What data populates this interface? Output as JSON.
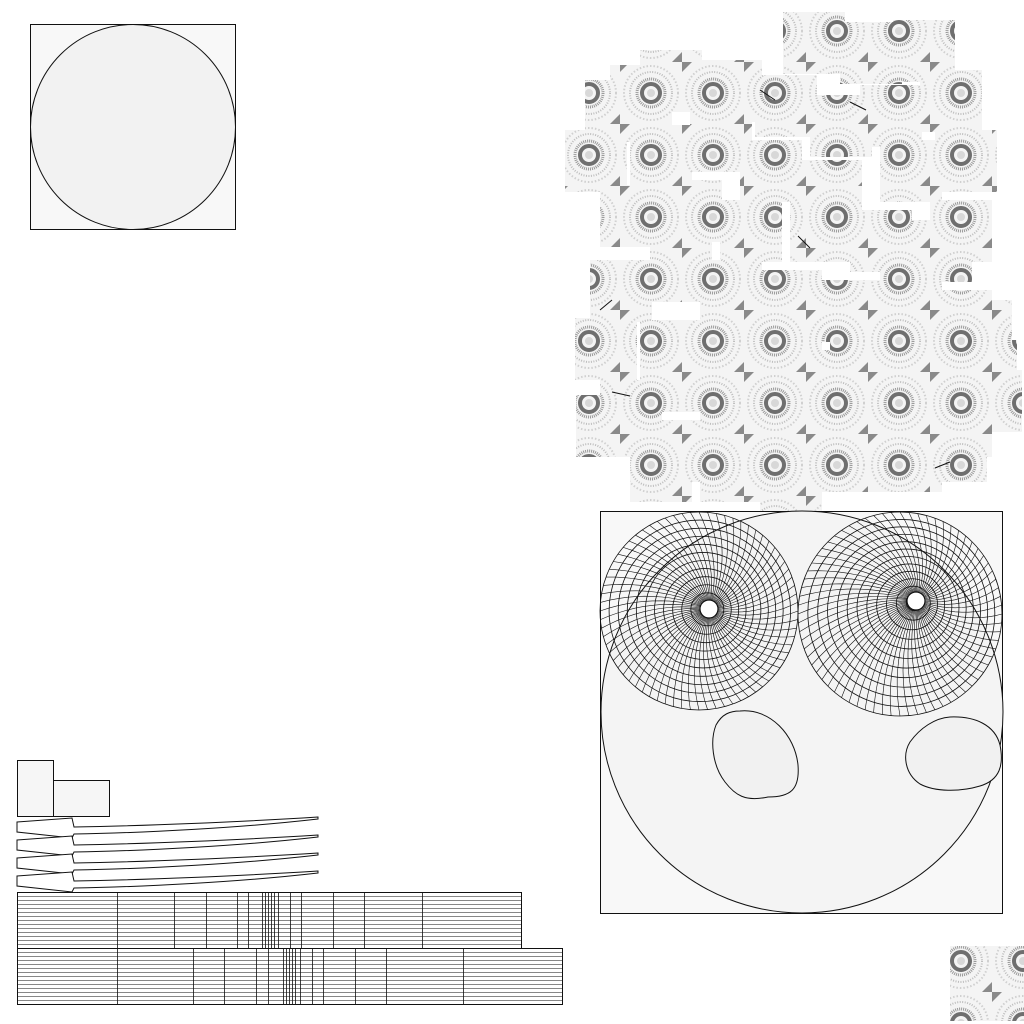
{
  "colors": {
    "background": "#ffffff",
    "panel_fill": "#f8f8f8",
    "shape_fill": "#f2f2f2",
    "stroke": "#111111",
    "texture_dark": "#555555",
    "texture_light": "#bdbdbd"
  },
  "panels": {
    "circle_in_square": {},
    "texture_atlas": {},
    "radial_mesh_panel": {},
    "strip_meshes": {},
    "texture_tile_corner": {}
  }
}
